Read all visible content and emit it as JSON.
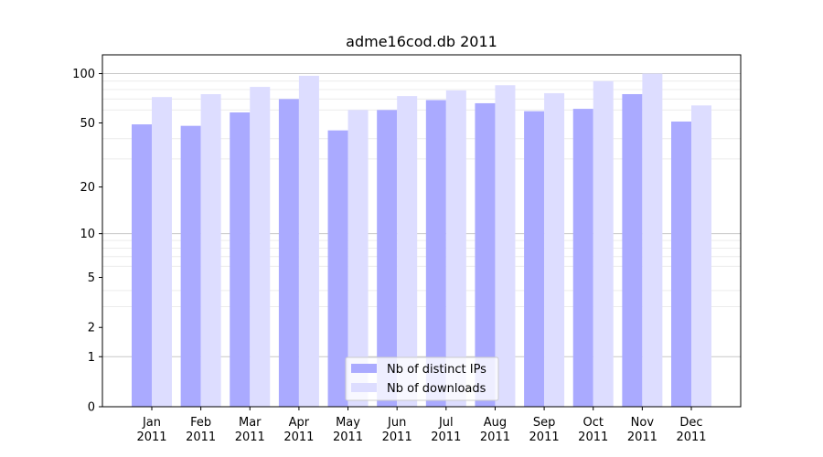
{
  "chart_data": {
    "type": "bar",
    "title": "adme16cod.db 2011",
    "xlabel": "",
    "ylabel": "",
    "y_scale": "symlog",
    "ylim": [
      0,
      130
    ],
    "grid": "horizontal",
    "legend_position": "lower-center",
    "categories": [
      {
        "month": "Jan",
        "year": "2011"
      },
      {
        "month": "Feb",
        "year": "2011"
      },
      {
        "month": "Mar",
        "year": "2011"
      },
      {
        "month": "Apr",
        "year": "2011"
      },
      {
        "month": "May",
        "year": "2011"
      },
      {
        "month": "Jun",
        "year": "2011"
      },
      {
        "month": "Jul",
        "year": "2011"
      },
      {
        "month": "Aug",
        "year": "2011"
      },
      {
        "month": "Sep",
        "year": "2011"
      },
      {
        "month": "Oct",
        "year": "2011"
      },
      {
        "month": "Nov",
        "year": "2011"
      },
      {
        "month": "Dec",
        "year": "2011"
      }
    ],
    "y_ticks": [
      0,
      1,
      2,
      5,
      10,
      20,
      50,
      100
    ],
    "series": [
      {
        "name": "Nb of distinct IPs",
        "color": "#aaaaff",
        "values": [
          49,
          48,
          58,
          70,
          45,
          60,
          69,
          66,
          59,
          61,
          75,
          51
        ]
      },
      {
        "name": "Nb of downloads",
        "color": "#ddddff",
        "values": [
          72,
          75,
          83,
          97,
          60,
          73,
          79,
          85,
          76,
          90,
          100,
          64
        ]
      }
    ]
  }
}
